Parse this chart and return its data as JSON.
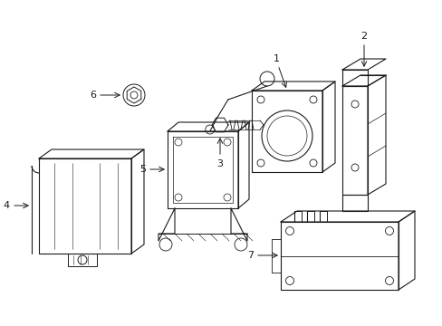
{
  "background_color": "#ffffff",
  "line_color": "#1a1a1a",
  "lw": 0.8,
  "figsize": [
    4.89,
    3.6
  ],
  "dpi": 100
}
